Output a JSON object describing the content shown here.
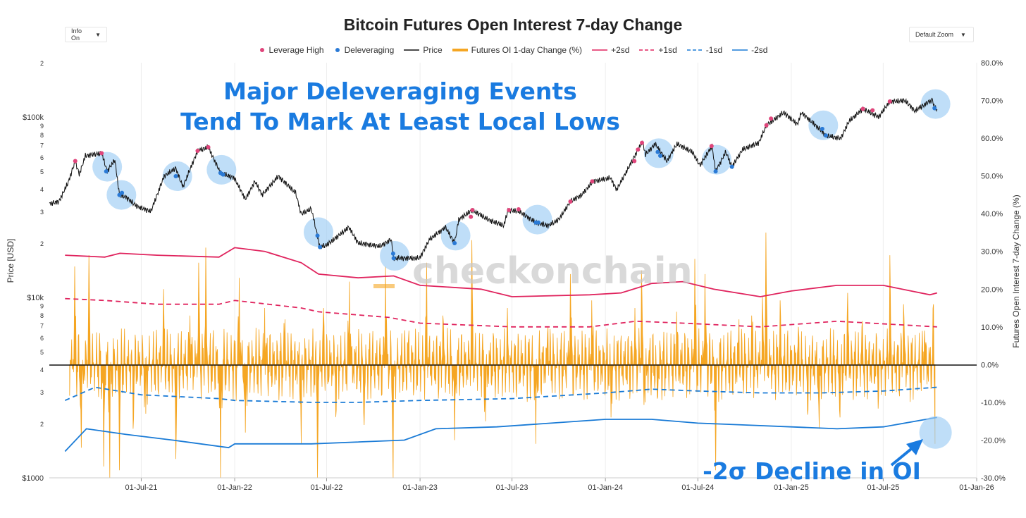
{
  "controls": {
    "info_label": "Info On",
    "zoom_label": "Default Zoom"
  },
  "legend": [
    {
      "key": "lev_high",
      "label": "Leverage High",
      "symbol": "dot",
      "color": "#e0457b"
    },
    {
      "key": "delev",
      "label": "Deleveraging",
      "symbol": "dot",
      "color": "#2a7ad6"
    },
    {
      "key": "price",
      "label": "Price",
      "symbol": "line",
      "color": "#111111"
    },
    {
      "key": "oi",
      "label": "Futures OI 1-day Change (%)",
      "symbol": "bar",
      "color": "#f5a623"
    },
    {
      "key": "p2sd",
      "label": "+2sd",
      "symbol": "line",
      "color": "#e0245e"
    },
    {
      "key": "p1sd",
      "label": "+1sd",
      "symbol": "dash",
      "color": "#e0245e"
    },
    {
      "key": "m1sd",
      "label": "-1sd",
      "symbol": "dash",
      "color": "#1a7bd6"
    },
    {
      "key": "m2sd",
      "label": "-2sd",
      "symbol": "line",
      "color": "#1a7bd6"
    }
  ],
  "annotations": {
    "headline_line1": "Major Deleveraging Events",
    "headline_line2": "Tend To Mark At Least Local Lows",
    "decline_label": "-2σ Decline in OI",
    "watermark": "checkonchain"
  },
  "chart_data": {
    "type": "line",
    "title": "Bitcoin Futures Open Interest 7-day Change",
    "colors": {
      "price": "#111111",
      "oi": "#f5a623",
      "plus_sd": "#e0245e",
      "minus_sd": "#1a7bd6",
      "lev_high": "#e0457b",
      "delev": "#2a7ad6",
      "annotation": "#1a7be0",
      "circle": "#9ccdf5"
    },
    "x_range": [
      "2021-01-01",
      "2026-01-01"
    ],
    "x_ticks": [
      "01-Jul-21",
      "01-Jan-22",
      "01-Jul-22",
      "01-Jan-23",
      "01-Jul-23",
      "01-Jan-24",
      "01-Jul-24",
      "01-Jan-25",
      "01-Jul-25",
      "01-Jan-26"
    ],
    "y_left": {
      "label": "Price [USD]",
      "scale": "log",
      "range": [
        1000,
        200000
      ],
      "ticks": [
        {
          "v": 1000,
          "t": "$1000"
        },
        {
          "v": 2000,
          "t": "2"
        },
        {
          "v": 3000,
          "t": "3"
        },
        {
          "v": 4000,
          "t": "4"
        },
        {
          "v": 5000,
          "t": "5"
        },
        {
          "v": 6000,
          "t": "6"
        },
        {
          "v": 7000,
          "t": "7"
        },
        {
          "v": 8000,
          "t": "8"
        },
        {
          "v": 9000,
          "t": "9"
        },
        {
          "v": 10000,
          "t": "$10k"
        },
        {
          "v": 20000,
          "t": "2"
        },
        {
          "v": 30000,
          "t": "3"
        },
        {
          "v": 40000,
          "t": "4"
        },
        {
          "v": 50000,
          "t": "5"
        },
        {
          "v": 60000,
          "t": "6"
        },
        {
          "v": 70000,
          "t": "7"
        },
        {
          "v": 80000,
          "t": "8"
        },
        {
          "v": 90000,
          "t": "9"
        },
        {
          "v": 100000,
          "t": "$100k"
        },
        {
          "v": 200000,
          "t": "2"
        }
      ]
    },
    "y_right": {
      "label": "Futures Open Interest 7-day Change (%)",
      "range": [
        -30,
        80
      ],
      "ticks": [
        {
          "v": 80,
          "t": "80.0%"
        },
        {
          "v": 70,
          "t": "70.0%"
        },
        {
          "v": 60,
          "t": "60.0%"
        },
        {
          "v": 50,
          "t": "50.0%"
        },
        {
          "v": 40,
          "t": "40.0%"
        },
        {
          "v": 30,
          "t": "30.0%"
        },
        {
          "v": 20,
          "t": "20.0%"
        },
        {
          "v": 10,
          "t": "10.0%"
        },
        {
          "v": 0,
          "t": "0.0%"
        },
        {
          "v": -10,
          "t": "-10.0%"
        },
        {
          "v": -20,
          "t": "-20.0%"
        },
        {
          "v": -30,
          "t": "-30.0%"
        }
      ]
    },
    "price_series": [
      [
        "2021-01-01",
        33000
      ],
      [
        "2021-01-20",
        34000
      ],
      [
        "2021-02-08",
        44000
      ],
      [
        "2021-02-21",
        57000
      ],
      [
        "2021-03-01",
        48000
      ],
      [
        "2021-03-13",
        61000
      ],
      [
        "2021-04-14",
        63000
      ],
      [
        "2021-04-25",
        50000
      ],
      [
        "2021-05-10",
        58000
      ],
      [
        "2021-05-19",
        37000
      ],
      [
        "2021-06-01",
        36000
      ],
      [
        "2021-06-22",
        32000
      ],
      [
        "2021-07-20",
        30000
      ],
      [
        "2021-08-15",
        47000
      ],
      [
        "2021-09-07",
        52000
      ],
      [
        "2021-09-21",
        41000
      ],
      [
        "2021-10-20",
        65000
      ],
      [
        "2021-11-10",
        68000
      ],
      [
        "2021-12-04",
        49000
      ],
      [
        "2021-12-31",
        46000
      ],
      [
        "2022-01-22",
        35000
      ],
      [
        "2022-02-10",
        44000
      ],
      [
        "2022-02-24",
        37000
      ],
      [
        "2022-03-28",
        47000
      ],
      [
        "2022-05-01",
        38000
      ],
      [
        "2022-05-12",
        29000
      ],
      [
        "2022-06-01",
        31000
      ],
      [
        "2022-06-18",
        19000
      ],
      [
        "2022-07-01",
        19500
      ],
      [
        "2022-08-14",
        24500
      ],
      [
        "2022-09-01",
        20000
      ],
      [
        "2022-10-15",
        19200
      ],
      [
        "2022-11-05",
        21000
      ],
      [
        "2022-11-10",
        16500
      ],
      [
        "2022-12-31",
        16500
      ],
      [
        "2023-01-20",
        21000
      ],
      [
        "2023-02-20",
        24500
      ],
      [
        "2023-03-10",
        20000
      ],
      [
        "2023-03-18",
        27000
      ],
      [
        "2023-04-14",
        30500
      ],
      [
        "2023-05-15",
        27000
      ],
      [
        "2023-06-15",
        25000
      ],
      [
        "2023-06-23",
        30500
      ],
      [
        "2023-07-15",
        30000
      ],
      [
        "2023-08-17",
        26000
      ],
      [
        "2023-09-11",
        25000
      ],
      [
        "2023-10-01",
        27000
      ],
      [
        "2023-10-24",
        34000
      ],
      [
        "2023-11-15",
        37000
      ],
      [
        "2023-12-08",
        44000
      ],
      [
        "2024-01-11",
        46000
      ],
      [
        "2024-01-23",
        39500
      ],
      [
        "2024-02-15",
        52000
      ],
      [
        "2024-03-05",
        66000
      ],
      [
        "2024-03-14",
        73000
      ],
      [
        "2024-03-20",
        62000
      ],
      [
        "2024-04-08",
        71000
      ],
      [
        "2024-05-01",
        57000
      ],
      [
        "2024-05-21",
        71000
      ],
      [
        "2024-06-20",
        64000
      ],
      [
        "2024-07-05",
        54000
      ],
      [
        "2024-07-29",
        69000
      ],
      [
        "2024-08-05",
        50000
      ],
      [
        "2024-08-25",
        64000
      ],
      [
        "2024-09-06",
        53000
      ],
      [
        "2024-09-27",
        66000
      ],
      [
        "2024-10-29",
        72000
      ],
      [
        "2024-11-13",
        90000
      ],
      [
        "2024-12-17",
        106000
      ],
      [
        "2025-01-13",
        91000
      ],
      [
        "2025-01-21",
        106000
      ],
      [
        "2025-02-25",
        86000
      ],
      [
        "2025-03-10",
        79000
      ],
      [
        "2025-04-08",
        76000
      ],
      [
        "2025-04-25",
        95000
      ],
      [
        "2025-05-22",
        111000
      ],
      [
        "2025-06-22",
        100000
      ],
      [
        "2025-07-14",
        122000
      ],
      [
        "2025-08-14",
        123000
      ],
      [
        "2025-09-01",
        108000
      ],
      [
        "2025-10-06",
        125000
      ],
      [
        "2025-10-10",
        112000
      ],
      [
        "2025-10-15",
        111000
      ]
    ],
    "plus_2sd": [
      [
        "2021-02-01",
        29
      ],
      [
        "2021-04-20",
        28.5
      ],
      [
        "2021-05-20",
        29.5
      ],
      [
        "2021-08-01",
        29
      ],
      [
        "2021-12-01",
        28.5
      ],
      [
        "2022-01-01",
        31
      ],
      [
        "2022-03-01",
        30
      ],
      [
        "2022-05-12",
        27
      ],
      [
        "2022-06-15",
        24
      ],
      [
        "2022-09-01",
        23
      ],
      [
        "2022-11-10",
        23.5
      ],
      [
        "2023-01-01",
        21
      ],
      [
        "2023-05-01",
        20
      ],
      [
        "2023-07-01",
        18
      ],
      [
        "2023-12-01",
        18.5
      ],
      [
        "2024-02-01",
        19
      ],
      [
        "2024-04-01",
        21.5
      ],
      [
        "2024-06-01",
        22
      ],
      [
        "2024-08-01",
        20
      ],
      [
        "2024-11-01",
        18
      ],
      [
        "2025-01-01",
        19.5
      ],
      [
        "2025-04-01",
        21
      ],
      [
        "2025-07-01",
        21
      ],
      [
        "2025-10-01",
        18.5
      ],
      [
        "2025-10-15",
        19
      ]
    ],
    "plus_1sd": [
      [
        "2021-02-01",
        17.5
      ],
      [
        "2021-04-20",
        17
      ],
      [
        "2021-08-01",
        16
      ],
      [
        "2021-12-01",
        16
      ],
      [
        "2022-01-01",
        17
      ],
      [
        "2022-05-12",
        15
      ],
      [
        "2022-06-15",
        14
      ],
      [
        "2022-11-01",
        12.5
      ],
      [
        "2023-01-01",
        11
      ],
      [
        "2023-07-01",
        10
      ],
      [
        "2023-12-01",
        10
      ],
      [
        "2024-03-01",
        11.5
      ],
      [
        "2024-06-01",
        11
      ],
      [
        "2024-11-01",
        10
      ],
      [
        "2025-04-01",
        11.5
      ],
      [
        "2025-10-15",
        10
      ]
    ],
    "minus_1sd": [
      [
        "2021-02-01",
        -9.5
      ],
      [
        "2021-04-01",
        -6
      ],
      [
        "2021-07-01",
        -8
      ],
      [
        "2021-12-01",
        -9
      ],
      [
        "2022-01-01",
        -9.5
      ],
      [
        "2022-06-01",
        -10
      ],
      [
        "2022-09-01",
        -10
      ],
      [
        "2023-01-01",
        -9.5
      ],
      [
        "2023-07-01",
        -9
      ],
      [
        "2024-01-01",
        -7.5
      ],
      [
        "2024-04-01",
        -6.5
      ],
      [
        "2024-07-01",
        -7
      ],
      [
        "2024-11-01",
        -7.5
      ],
      [
        "2025-03-01",
        -7.5
      ],
      [
        "2025-07-01",
        -7
      ],
      [
        "2025-10-15",
        -6
      ]
    ],
    "minus_2sd": [
      [
        "2021-02-01",
        -23
      ],
      [
        "2021-03-15",
        -17
      ],
      [
        "2021-06-01",
        -18.5
      ],
      [
        "2021-09-01",
        -20
      ],
      [
        "2021-12-20",
        -22
      ],
      [
        "2022-01-01",
        -21
      ],
      [
        "2022-06-01",
        -21
      ],
      [
        "2022-12-01",
        -20
      ],
      [
        "2023-02-01",
        -17
      ],
      [
        "2023-06-01",
        -16.5
      ],
      [
        "2024-01-01",
        -14.5
      ],
      [
        "2024-04-01",
        -14.5
      ],
      [
        "2024-07-01",
        -15.5
      ],
      [
        "2024-10-01",
        -16
      ],
      [
        "2025-01-01",
        -16.5
      ],
      [
        "2025-04-01",
        -17
      ],
      [
        "2025-07-01",
        -16.5
      ],
      [
        "2025-10-15",
        -14
      ]
    ],
    "oi_spikes": [
      [
        "2021-02-20",
        26
      ],
      [
        "2021-03-05",
        -22
      ],
      [
        "2021-03-20",
        29
      ],
      [
        "2021-04-18",
        -27
      ],
      [
        "2021-04-30",
        -30
      ],
      [
        "2021-05-19",
        -28
      ],
      [
        "2021-06-15",
        -17
      ],
      [
        "2021-07-10",
        -13
      ],
      [
        "2021-08-14",
        20
      ],
      [
        "2021-09-07",
        -25
      ],
      [
        "2021-10-05",
        13
      ],
      [
        "2021-10-22",
        27
      ],
      [
        "2021-11-05",
        31
      ],
      [
        "2021-12-04",
        -30
      ],
      [
        "2022-01-10",
        23
      ],
      [
        "2022-01-22",
        -18
      ],
      [
        "2022-03-01",
        15
      ],
      [
        "2022-04-10",
        12
      ],
      [
        "2022-05-12",
        -21
      ],
      [
        "2022-06-13",
        -30
      ],
      [
        "2022-06-25",
        15
      ],
      [
        "2022-07-20",
        -12
      ],
      [
        "2022-08-15",
        22
      ],
      [
        "2022-09-13",
        -16
      ],
      [
        "2022-10-25",
        26
      ],
      [
        "2022-11-09",
        -30
      ],
      [
        "2022-12-10",
        9
      ],
      [
        "2023-01-14",
        27
      ],
      [
        "2023-02-15",
        13
      ],
      [
        "2023-03-10",
        -20
      ],
      [
        "2023-04-13",
        33
      ],
      [
        "2023-05-10",
        -15
      ],
      [
        "2023-06-22",
        15
      ],
      [
        "2023-08-17",
        -21
      ],
      [
        "2023-09-10",
        10
      ],
      [
        "2023-10-24",
        24
      ],
      [
        "2023-12-05",
        17
      ],
      [
        "2024-01-12",
        -14
      ],
      [
        "2024-02-28",
        15
      ],
      [
        "2024-03-12",
        25
      ],
      [
        "2024-03-19",
        -10
      ],
      [
        "2024-04-12",
        -9
      ],
      [
        "2024-05-20",
        14
      ],
      [
        "2024-06-25",
        28
      ],
      [
        "2024-07-15",
        24
      ],
      [
        "2024-08-05",
        -28
      ],
      [
        "2024-09-20",
        12
      ],
      [
        "2024-10-15",
        13
      ],
      [
        "2024-11-05",
        18
      ],
      [
        "2024-11-12",
        35
      ],
      [
        "2024-12-10",
        17
      ],
      [
        "2025-01-15",
        10
      ],
      [
        "2025-02-03",
        -12
      ],
      [
        "2025-02-25",
        -17
      ],
      [
        "2025-04-07",
        -14
      ],
      [
        "2025-04-22",
        19
      ],
      [
        "2025-05-20",
        10
      ],
      [
        "2025-06-22",
        -8
      ],
      [
        "2025-07-14",
        29
      ],
      [
        "2025-08-10",
        16
      ],
      [
        "2025-09-20",
        9
      ],
      [
        "2025-10-08",
        16
      ],
      [
        "2025-10-11",
        -21
      ]
    ],
    "leverage_high_points": [
      [
        "2021-02-21",
        57000
      ],
      [
        "2021-04-14",
        63000
      ],
      [
        "2021-10-20",
        65000
      ],
      [
        "2021-11-10",
        68000
      ],
      [
        "2023-04-11",
        28000
      ],
      [
        "2023-04-14",
        30500
      ],
      [
        "2023-06-25",
        30500
      ],
      [
        "2023-07-14",
        30800
      ],
      [
        "2023-10-24",
        34000
      ],
      [
        "2023-12-06",
        44000
      ],
      [
        "2024-02-27",
        57000
      ],
      [
        "2024-03-05",
        66000
      ],
      [
        "2024-03-13",
        72000
      ],
      [
        "2024-07-28",
        69000
      ],
      [
        "2024-11-13",
        90000
      ],
      [
        "2024-11-22",
        98000
      ],
      [
        "2025-05-22",
        111000
      ],
      [
        "2025-06-10",
        109000
      ],
      [
        "2025-07-14",
        122000
      ]
    ],
    "deleveraging_points": [
      [
        "2021-04-23",
        50000
      ],
      [
        "2021-05-19",
        37000
      ],
      [
        "2021-05-24",
        38000
      ],
      [
        "2021-09-07",
        47000
      ],
      [
        "2021-12-04",
        49000
      ],
      [
        "2021-12-09",
        48000
      ],
      [
        "2022-06-13",
        22000
      ],
      [
        "2022-06-18",
        19000
      ],
      [
        "2022-11-09",
        17500
      ],
      [
        "2022-11-10",
        16500
      ],
      [
        "2023-03-10",
        20000
      ],
      [
        "2023-08-17",
        26000
      ],
      [
        "2023-08-22",
        26000
      ],
      [
        "2024-04-13",
        64000
      ],
      [
        "2024-04-18",
        61000
      ],
      [
        "2024-08-05",
        50000
      ],
      [
        "2024-09-06",
        53000
      ],
      [
        "2025-03-03",
        86000
      ],
      [
        "2025-03-10",
        79000
      ],
      [
        "2025-10-10",
        112000
      ]
    ],
    "highlight_circles": [
      [
        "2021-04-25",
        53000
      ],
      [
        "2021-05-23",
        37000
      ],
      [
        "2021-09-10",
        47000
      ],
      [
        "2021-12-06",
        51000
      ],
      [
        "2022-06-15",
        23000
      ],
      [
        "2022-11-12",
        17000
      ],
      [
        "2023-03-12",
        22000
      ],
      [
        "2023-08-20",
        27000
      ],
      [
        "2024-04-15",
        63000
      ],
      [
        "2024-08-07",
        58000
      ],
      [
        "2025-03-05",
        90000
      ],
      [
        "2025-10-12",
        118000
      ]
    ]
  }
}
